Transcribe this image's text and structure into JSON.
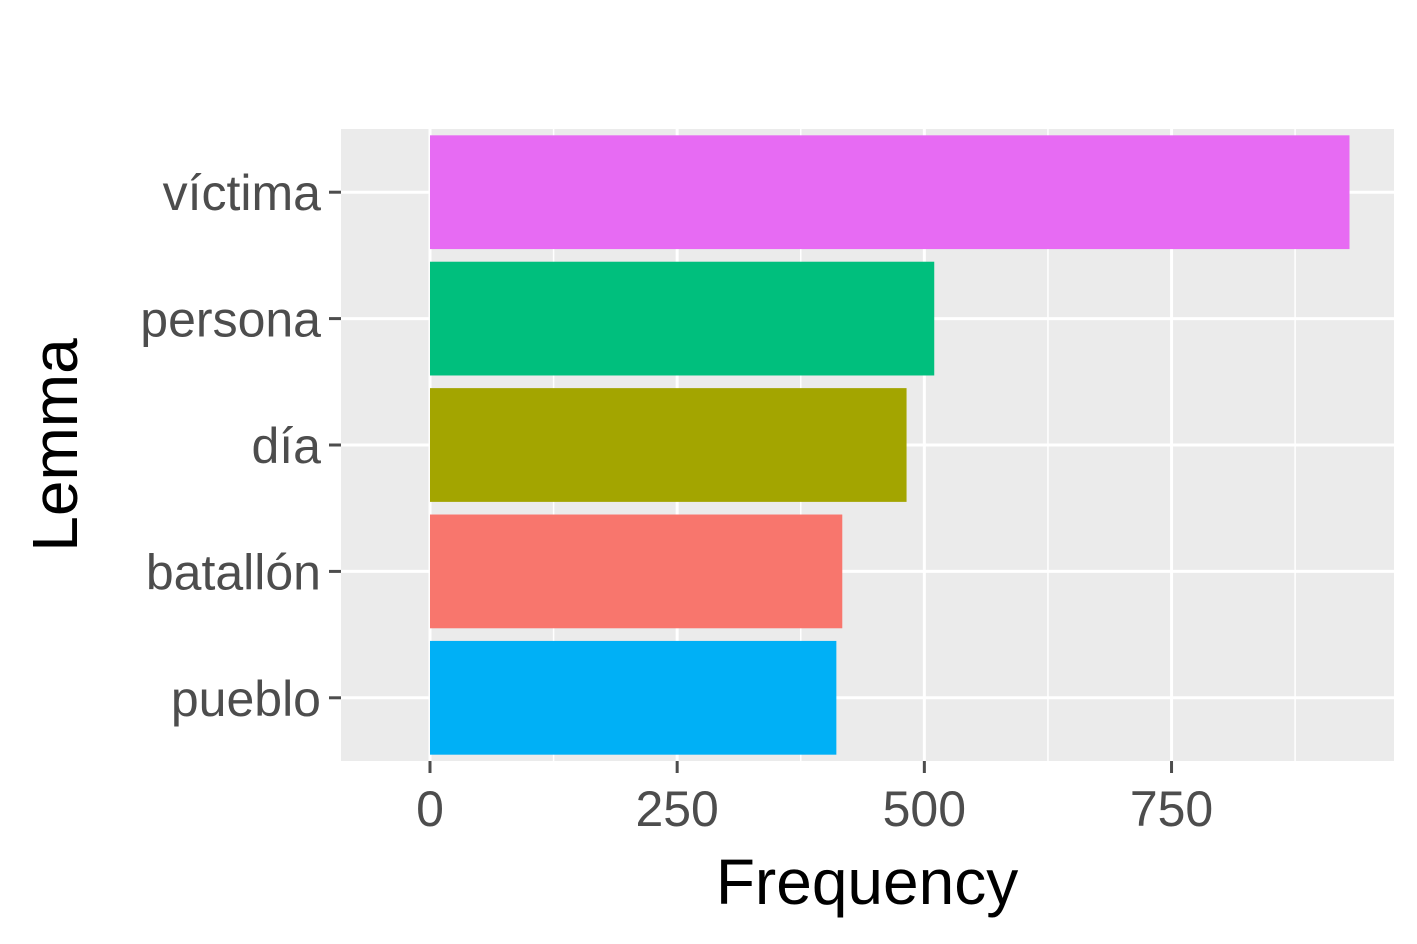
{
  "chart_data": {
    "type": "bar",
    "orientation": "horizontal",
    "xlabel": "Frequency",
    "ylabel": "Lemma",
    "xlim": [
      -90,
      975
    ],
    "x_ticks": [
      0,
      250,
      500,
      750
    ],
    "grid": true,
    "legend": "none",
    "categories": [
      "víctima",
      "persona",
      "día",
      "batallón",
      "pueblo"
    ],
    "values": [
      930,
      510,
      482,
      417,
      411
    ],
    "colors": [
      "#E76BF3",
      "#00BF7D",
      "#A3A500",
      "#F8766D",
      "#00B0F6"
    ],
    "panel_background": "#EBEBEB",
    "grid_color": "#FFFFFF",
    "tick_color": "#4D4D4D"
  }
}
